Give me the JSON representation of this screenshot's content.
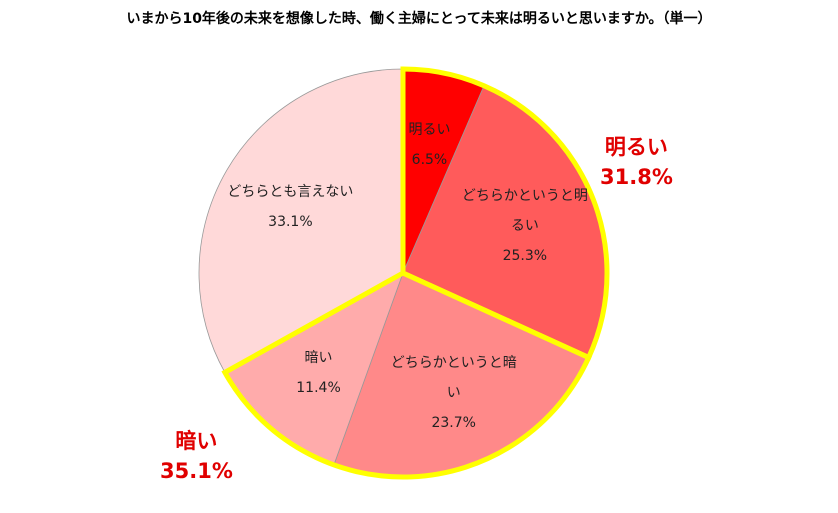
{
  "chart_data": {
    "type": "pie",
    "title": "いまから10年後の未来を想像した時、働く主婦にとって未来は明るいと思いますか。（単一）",
    "categories": [
      "明るい",
      "どちらかというと明るい",
      "どちらかというと暗い",
      "暗い",
      "どちらとも言えない"
    ],
    "values": [
      6.5,
      25.3,
      23.7,
      11.4,
      33.1
    ],
    "value_labels": [
      "6.5%",
      "25.3%",
      "23.7%",
      "11.4%",
      "33.1%"
    ],
    "colors": [
      "#ff0000",
      "#ff5b5b",
      "#ff8989",
      "#ffabab",
      "#ffd9d9"
    ],
    "annotations": [
      {
        "label": "明るい",
        "value": 31.8,
        "value_label": "31.8%"
      },
      {
        "label": "暗い",
        "value": 35.1,
        "value_label": "35.1%"
      }
    ],
    "highlight_color": "#ffff00"
  }
}
